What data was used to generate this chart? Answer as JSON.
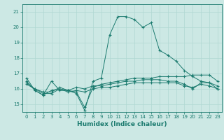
{
  "bg_color": "#cce8e4",
  "grid_color": "#b0d8d2",
  "line_color": "#1a7a6e",
  "xlabel": "Humidex (Indice chaleur)",
  "ylim": [
    14.5,
    21.5
  ],
  "xlim": [
    -0.5,
    23.5
  ],
  "yticks": [
    15,
    16,
    17,
    18,
    19,
    20,
    21
  ],
  "xticks": [
    0,
    1,
    2,
    3,
    4,
    5,
    6,
    7,
    8,
    9,
    10,
    11,
    12,
    13,
    14,
    15,
    16,
    17,
    18,
    19,
    20,
    21,
    22,
    23
  ],
  "series1_x": [
    0,
    1,
    2,
    3,
    4,
    5,
    6,
    7,
    8,
    9,
    10,
    11,
    12,
    13,
    14,
    15,
    16,
    17,
    18,
    19,
    20,
    21,
    22,
    23
  ],
  "series1_y": [
    16.7,
    15.9,
    15.6,
    16.5,
    15.9,
    15.9,
    15.7,
    14.6,
    16.5,
    16.7,
    19.5,
    20.7,
    20.7,
    20.5,
    20.0,
    20.3,
    18.5,
    18.2,
    17.8,
    17.2,
    16.8,
    16.5,
    16.4,
    16.0
  ],
  "series2_x": [
    0,
    1,
    2,
    3,
    4,
    5,
    6,
    7,
    8,
    9,
    10,
    11,
    12,
    13,
    14,
    15,
    16,
    17,
    18,
    19,
    20,
    21,
    22,
    23
  ],
  "series2_y": [
    16.5,
    15.9,
    15.6,
    15.9,
    16.0,
    15.9,
    15.8,
    14.8,
    16.1,
    16.3,
    16.4,
    16.5,
    16.6,
    16.7,
    16.7,
    16.7,
    16.8,
    16.8,
    16.8,
    16.8,
    16.9,
    16.9,
    16.9,
    16.5
  ],
  "series3_x": [
    0,
    1,
    2,
    3,
    4,
    5,
    6,
    7,
    8,
    9,
    10,
    11,
    12,
    13,
    14,
    15,
    16,
    17,
    18,
    19,
    20,
    21,
    22,
    23
  ],
  "series3_y": [
    16.3,
    16.0,
    15.7,
    15.7,
    16.0,
    15.8,
    15.9,
    15.8,
    16.0,
    16.1,
    16.1,
    16.2,
    16.3,
    16.4,
    16.4,
    16.4,
    16.4,
    16.4,
    16.4,
    16.2,
    16.1,
    16.3,
    16.2,
    16.0
  ],
  "series4_x": [
    0,
    1,
    2,
    3,
    4,
    5,
    6,
    7,
    8,
    9,
    10,
    11,
    12,
    13,
    14,
    15,
    16,
    17,
    18,
    19,
    20,
    21,
    22,
    23
  ],
  "series4_y": [
    16.4,
    16.0,
    15.8,
    15.8,
    16.1,
    15.9,
    16.1,
    16.0,
    16.2,
    16.2,
    16.3,
    16.4,
    16.5,
    16.5,
    16.6,
    16.6,
    16.6,
    16.5,
    16.5,
    16.3,
    16.0,
    16.4,
    16.4,
    16.2
  ]
}
